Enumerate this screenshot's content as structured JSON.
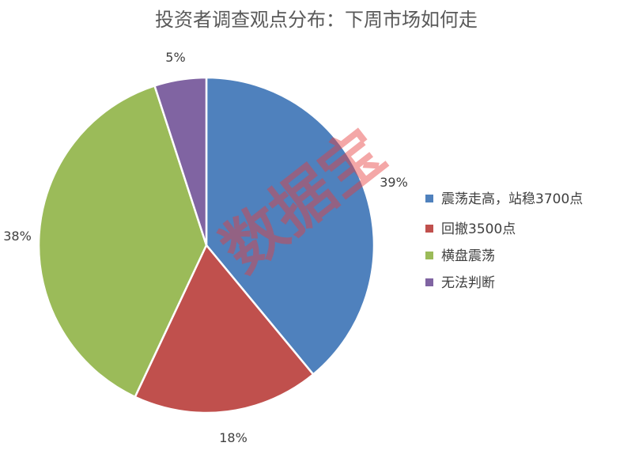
{
  "chart_data": {
    "type": "pie",
    "title": "投资者调查观点分布：下周市场如何走",
    "categories": [
      "震荡走高，站稳3700点",
      "回撤3500点",
      "横盘震荡",
      "无法判断"
    ],
    "values": [
      39,
      18,
      38,
      5
    ],
    "data_labels": [
      "39%",
      "18%",
      "38%",
      "5%"
    ],
    "colors": [
      "#4f81bd",
      "#c0504d",
      "#9bbb59",
      "#8064a2"
    ],
    "start": "top, clockwise",
    "legend_position": "right"
  },
  "watermark": "数据宝"
}
